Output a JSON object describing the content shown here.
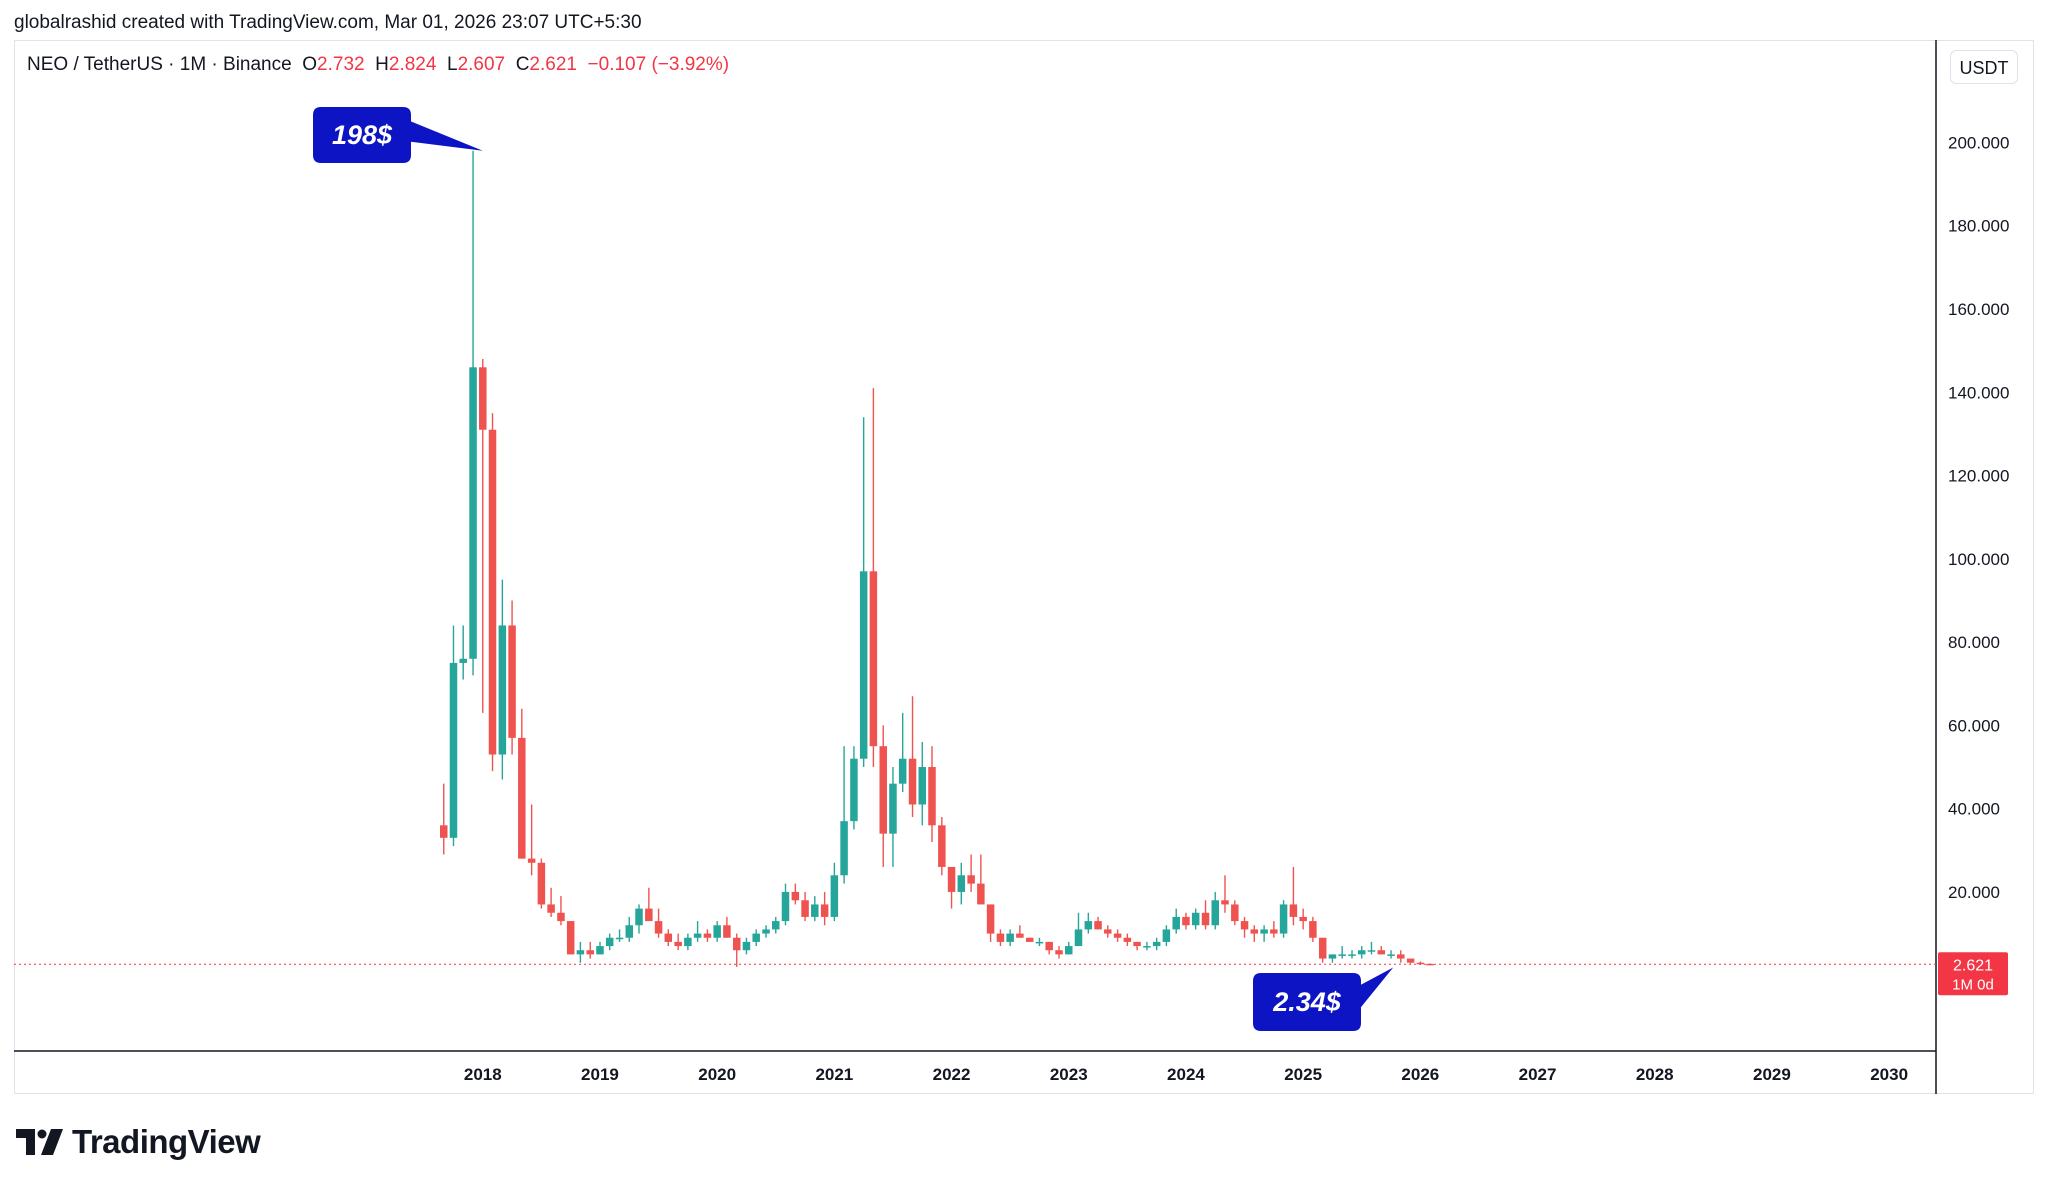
{
  "header": {
    "created_line": "globalrashid created with TradingView.com, Mar 01, 2026 23:07 UTC+5:30"
  },
  "legend": {
    "symbol": "NEO / TetherUS · 1M · Binance",
    "open_label": "O",
    "open": "2.732",
    "high_label": "H",
    "high": "2.824",
    "low_label": "L",
    "low": "2.607",
    "close_label": "C",
    "close": "2.621",
    "change": "−0.107 (−3.92%)"
  },
  "price_scale": {
    "unit": "USDT"
  },
  "last_price": {
    "value": "2.621",
    "countdown": "1M 0d"
  },
  "annotations": {
    "ath": "198$",
    "current": "2.34$"
  },
  "branding": {
    "logo_text": "TradingView"
  },
  "colors": {
    "up": "#26a69a",
    "down": "#ef5350",
    "callout": "#0d14c4",
    "price_line": "#f23645",
    "axis_text": "#131722",
    "grid": "#e0e3eb"
  },
  "chart_data": {
    "type": "candlestick",
    "title": "NEO / TetherUS · 1M · Binance",
    "ylim": [
      -18.2,
      224.6
    ],
    "y_ticks": [
      20,
      40,
      60,
      80,
      100,
      120,
      140,
      160,
      180,
      200
    ],
    "y_tick_labels": [
      "20.000",
      "40.000",
      "60.000",
      "80.000",
      "100.000",
      "120.000",
      "140.000",
      "160.000",
      "180.000",
      "200.000"
    ],
    "x_ticks": [
      "2018",
      "2019",
      "2020",
      "2021",
      "2022",
      "2023",
      "2024",
      "2025",
      "2026",
      "2027",
      "2028",
      "2029",
      "2030"
    ],
    "x_range_years": [
      2014.0,
      2030.4
    ],
    "last_price": 2.621,
    "callouts": [
      {
        "text": "198$",
        "x": 2018.0,
        "y": 198
      },
      {
        "text": "2.34$",
        "x": 2025.7,
        "y": 2.34
      }
    ],
    "candles": [
      {
        "t": 2017.667,
        "o": 36,
        "h": 46,
        "l": 29,
        "c": 33
      },
      {
        "t": 2017.75,
        "o": 33,
        "h": 84,
        "l": 31,
        "c": 75
      },
      {
        "t": 2017.833,
        "o": 75,
        "h": 84,
        "l": 71,
        "c": 76
      },
      {
        "t": 2017.917,
        "o": 76,
        "h": 198,
        "l": 72,
        "c": 146
      },
      {
        "t": 2018.0,
        "o": 146,
        "h": 148,
        "l": 63,
        "c": 131
      },
      {
        "t": 2018.083,
        "o": 131,
        "h": 135,
        "l": 49,
        "c": 53
      },
      {
        "t": 2018.167,
        "o": 53,
        "h": 95,
        "l": 47,
        "c": 84
      },
      {
        "t": 2018.25,
        "o": 84,
        "h": 90,
        "l": 53,
        "c": 57
      },
      {
        "t": 2018.333,
        "o": 57,
        "h": 64,
        "l": 28,
        "c": 28
      },
      {
        "t": 2018.417,
        "o": 28,
        "h": 41,
        "l": 24,
        "c": 27
      },
      {
        "t": 2018.5,
        "o": 27,
        "h": 28,
        "l": 16,
        "c": 17
      },
      {
        "t": 2018.583,
        "o": 17,
        "h": 21,
        "l": 14,
        "c": 15
      },
      {
        "t": 2018.667,
        "o": 15,
        "h": 19,
        "l": 12,
        "c": 13
      },
      {
        "t": 2018.75,
        "o": 13,
        "h": 13,
        "l": 5,
        "c": 5
      },
      {
        "t": 2018.833,
        "o": 5,
        "h": 8,
        "l": 3,
        "c": 6
      },
      {
        "t": 2018.917,
        "o": 6,
        "h": 8,
        "l": 4,
        "c": 5
      },
      {
        "t": 2019.0,
        "o": 5,
        "h": 8,
        "l": 5,
        "c": 7
      },
      {
        "t": 2019.083,
        "o": 7,
        "h": 10,
        "l": 6,
        "c": 9
      },
      {
        "t": 2019.167,
        "o": 9,
        "h": 11,
        "l": 8,
        "c": 9
      },
      {
        "t": 2019.25,
        "o": 9,
        "h": 14,
        "l": 8,
        "c": 12
      },
      {
        "t": 2019.333,
        "o": 12,
        "h": 17,
        "l": 10,
        "c": 16
      },
      {
        "t": 2019.417,
        "o": 16,
        "h": 21,
        "l": 14,
        "c": 13
      },
      {
        "t": 2019.5,
        "o": 13,
        "h": 16,
        "l": 9,
        "c": 10
      },
      {
        "t": 2019.583,
        "o": 10,
        "h": 11,
        "l": 7,
        "c": 8
      },
      {
        "t": 2019.667,
        "o": 8,
        "h": 10,
        "l": 6,
        "c": 7
      },
      {
        "t": 2019.75,
        "o": 7,
        "h": 10,
        "l": 6,
        "c": 9
      },
      {
        "t": 2019.833,
        "o": 9,
        "h": 13,
        "l": 8,
        "c": 10
      },
      {
        "t": 2019.917,
        "o": 10,
        "h": 11,
        "l": 8,
        "c": 9
      },
      {
        "t": 2020.0,
        "o": 9,
        "h": 13,
        "l": 8,
        "c": 12
      },
      {
        "t": 2020.083,
        "o": 12,
        "h": 14,
        "l": 9,
        "c": 9
      },
      {
        "t": 2020.167,
        "o": 9,
        "h": 10,
        "l": 2,
        "c": 6
      },
      {
        "t": 2020.25,
        "o": 6,
        "h": 9,
        "l": 5,
        "c": 8
      },
      {
        "t": 2020.333,
        "o": 8,
        "h": 11,
        "l": 7,
        "c": 10
      },
      {
        "t": 2020.417,
        "o": 10,
        "h": 12,
        "l": 9,
        "c": 11
      },
      {
        "t": 2020.5,
        "o": 11,
        "h": 14,
        "l": 10,
        "c": 13
      },
      {
        "t": 2020.583,
        "o": 13,
        "h": 22,
        "l": 12,
        "c": 20
      },
      {
        "t": 2020.667,
        "o": 20,
        "h": 22,
        "l": 17,
        "c": 18
      },
      {
        "t": 2020.75,
        "o": 18,
        "h": 20,
        "l": 13,
        "c": 14
      },
      {
        "t": 2020.833,
        "o": 14,
        "h": 19,
        "l": 13,
        "c": 17
      },
      {
        "t": 2020.917,
        "o": 17,
        "h": 20,
        "l": 12,
        "c": 14
      },
      {
        "t": 2021.0,
        "o": 14,
        "h": 27,
        "l": 13,
        "c": 24
      },
      {
        "t": 2021.083,
        "o": 24,
        "h": 55,
        "l": 22,
        "c": 37
      },
      {
        "t": 2021.167,
        "o": 37,
        "h": 55,
        "l": 35,
        "c": 52
      },
      {
        "t": 2021.25,
        "o": 52,
        "h": 134,
        "l": 50,
        "c": 97
      },
      {
        "t": 2021.333,
        "o": 97,
        "h": 141,
        "l": 50,
        "c": 55
      },
      {
        "t": 2021.417,
        "o": 55,
        "h": 60,
        "l": 26,
        "c": 34
      },
      {
        "t": 2021.5,
        "o": 34,
        "h": 50,
        "l": 26,
        "c": 46
      },
      {
        "t": 2021.583,
        "o": 46,
        "h": 63,
        "l": 44,
        "c": 52
      },
      {
        "t": 2021.667,
        "o": 52,
        "h": 67,
        "l": 38,
        "c": 41
      },
      {
        "t": 2021.75,
        "o": 41,
        "h": 56,
        "l": 36,
        "c": 50
      },
      {
        "t": 2021.833,
        "o": 50,
        "h": 55,
        "l": 32,
        "c": 36
      },
      {
        "t": 2021.917,
        "o": 36,
        "h": 38,
        "l": 24,
        "c": 26
      },
      {
        "t": 2022.0,
        "o": 26,
        "h": 26,
        "l": 16,
        "c": 20
      },
      {
        "t": 2022.083,
        "o": 20,
        "h": 27,
        "l": 17,
        "c": 24
      },
      {
        "t": 2022.167,
        "o": 24,
        "h": 29,
        "l": 20,
        "c": 22
      },
      {
        "t": 2022.25,
        "o": 22,
        "h": 29,
        "l": 17,
        "c": 17
      },
      {
        "t": 2022.333,
        "o": 17,
        "h": 17,
        "l": 8,
        "c": 10
      },
      {
        "t": 2022.417,
        "o": 10,
        "h": 11,
        "l": 7,
        "c": 8
      },
      {
        "t": 2022.5,
        "o": 8,
        "h": 11,
        "l": 7,
        "c": 10
      },
      {
        "t": 2022.583,
        "o": 10,
        "h": 12,
        "l": 9,
        "c": 9
      },
      {
        "t": 2022.667,
        "o": 9,
        "h": 9,
        "l": 8,
        "c": 8
      },
      {
        "t": 2022.75,
        "o": 8,
        "h": 9,
        "l": 7,
        "c": 8
      },
      {
        "t": 2022.833,
        "o": 8,
        "h": 8,
        "l": 5,
        "c": 6
      },
      {
        "t": 2022.917,
        "o": 6,
        "h": 7,
        "l": 4,
        "c": 5
      },
      {
        "t": 2023.0,
        "o": 5,
        "h": 8,
        "l": 5,
        "c": 7
      },
      {
        "t": 2023.083,
        "o": 7,
        "h": 15,
        "l": 7,
        "c": 11
      },
      {
        "t": 2023.167,
        "o": 11,
        "h": 15,
        "l": 10,
        "c": 13
      },
      {
        "t": 2023.25,
        "o": 13,
        "h": 14,
        "l": 11,
        "c": 11
      },
      {
        "t": 2023.333,
        "o": 11,
        "h": 12,
        "l": 9,
        "c": 10
      },
      {
        "t": 2023.417,
        "o": 10,
        "h": 11,
        "l": 8,
        "c": 9
      },
      {
        "t": 2023.5,
        "o": 9,
        "h": 10,
        "l": 7,
        "c": 8
      },
      {
        "t": 2023.583,
        "o": 8,
        "h": 8,
        "l": 6,
        "c": 7
      },
      {
        "t": 2023.667,
        "o": 7,
        "h": 8,
        "l": 6,
        "c": 7
      },
      {
        "t": 2023.75,
        "o": 7,
        "h": 9,
        "l": 6,
        "c": 8
      },
      {
        "t": 2023.833,
        "o": 8,
        "h": 12,
        "l": 7,
        "c": 11
      },
      {
        "t": 2023.917,
        "o": 11,
        "h": 16,
        "l": 10,
        "c": 14
      },
      {
        "t": 2024.0,
        "o": 14,
        "h": 15,
        "l": 11,
        "c": 12
      },
      {
        "t": 2024.083,
        "o": 12,
        "h": 16,
        "l": 11,
        "c": 15
      },
      {
        "t": 2024.167,
        "o": 15,
        "h": 18,
        "l": 11,
        "c": 12
      },
      {
        "t": 2024.25,
        "o": 12,
        "h": 20,
        "l": 11,
        "c": 18
      },
      {
        "t": 2024.333,
        "o": 18,
        "h": 24,
        "l": 15,
        "c": 17
      },
      {
        "t": 2024.417,
        "o": 17,
        "h": 18,
        "l": 12,
        "c": 13
      },
      {
        "t": 2024.5,
        "o": 13,
        "h": 14,
        "l": 9,
        "c": 11
      },
      {
        "t": 2024.583,
        "o": 11,
        "h": 12,
        "l": 8,
        "c": 10
      },
      {
        "t": 2024.667,
        "o": 10,
        "h": 12,
        "l": 8,
        "c": 11
      },
      {
        "t": 2024.75,
        "o": 11,
        "h": 13,
        "l": 9,
        "c": 10
      },
      {
        "t": 2024.833,
        "o": 10,
        "h": 18,
        "l": 9,
        "c": 17
      },
      {
        "t": 2024.917,
        "o": 17,
        "h": 26,
        "l": 12,
        "c": 14
      },
      {
        "t": 2025.0,
        "o": 14,
        "h": 16,
        "l": 11,
        "c": 13
      },
      {
        "t": 2025.083,
        "o": 13,
        "h": 14,
        "l": 8,
        "c": 9
      },
      {
        "t": 2025.167,
        "o": 9,
        "h": 9,
        "l": 3,
        "c": 4
      },
      {
        "t": 2025.25,
        "o": 4,
        "h": 5,
        "l": 3,
        "c": 5
      },
      {
        "t": 2025.333,
        "o": 5,
        "h": 7,
        "l": 4,
        "c": 5
      },
      {
        "t": 2025.417,
        "o": 5,
        "h": 6,
        "l": 4,
        "c": 5
      },
      {
        "t": 2025.5,
        "o": 5,
        "h": 7,
        "l": 4,
        "c": 6
      },
      {
        "t": 2025.583,
        "o": 6,
        "h": 8,
        "l": 5,
        "c": 6
      },
      {
        "t": 2025.667,
        "o": 6,
        "h": 7,
        "l": 5,
        "c": 5
      },
      {
        "t": 2025.75,
        "o": 5,
        "h": 6,
        "l": 4,
        "c": 5
      },
      {
        "t": 2025.833,
        "o": 5,
        "h": 6,
        "l": 3,
        "c": 4
      },
      {
        "t": 2025.917,
        "o": 4,
        "h": 4,
        "l": 2.8,
        "c": 3
      },
      {
        "t": 2026.0,
        "o": 3,
        "h": 3.3,
        "l": 2.5,
        "c": 2.73
      },
      {
        "t": 2026.083,
        "o": 2.732,
        "h": 2.824,
        "l": 2.607,
        "c": 2.621
      }
    ]
  }
}
